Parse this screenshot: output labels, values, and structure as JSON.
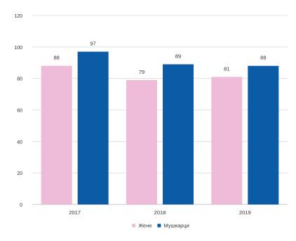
{
  "chart_data": {
    "type": "bar",
    "categories": [
      "2017",
      "2018",
      "2019"
    ],
    "series": [
      {
        "name": "Жене",
        "values": [
          88,
          79,
          81
        ],
        "color": "#eebbd8"
      },
      {
        "name": "Мушкарци",
        "values": [
          97,
          89,
          88
        ],
        "color": "#0c5ba6"
      }
    ],
    "ylim": [
      0,
      120
    ],
    "yticks": [
      0,
      20,
      40,
      60,
      80,
      100,
      120
    ],
    "grid": true,
    "legend_position": "bottom",
    "title": "",
    "xlabel": "",
    "ylabel": ""
  }
}
